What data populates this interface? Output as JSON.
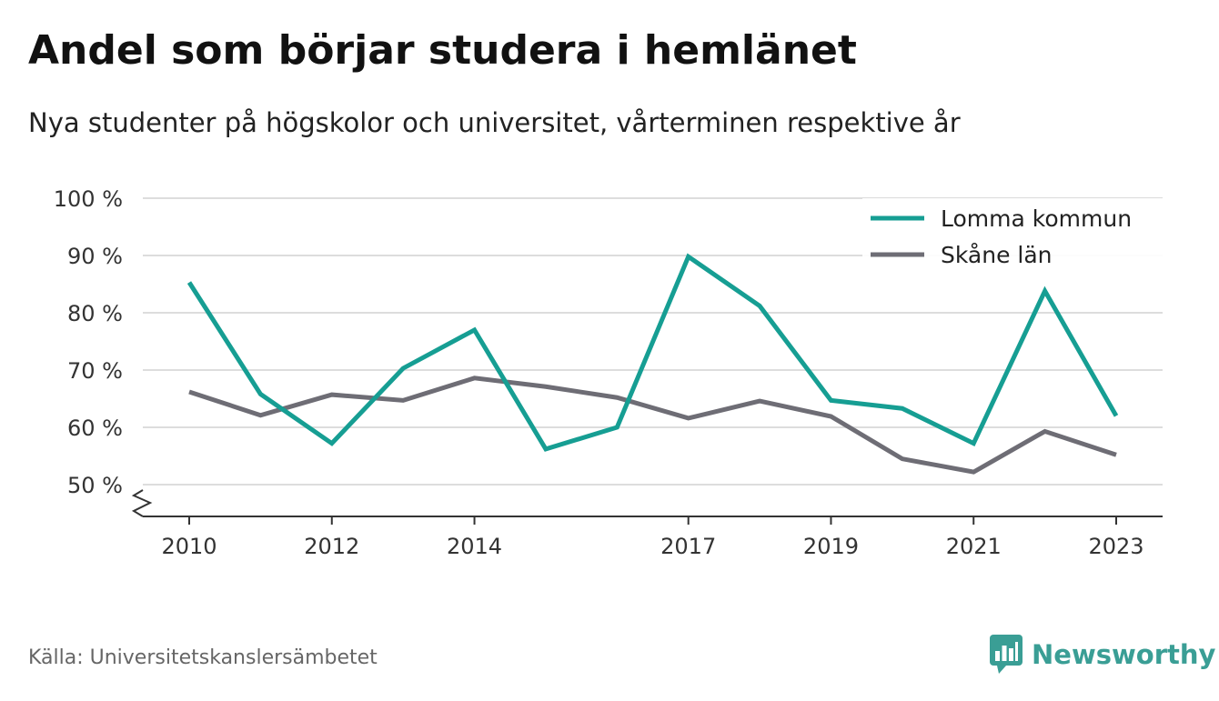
{
  "header": {
    "title": "Andel som börjar studera i hemlänet",
    "subtitle": "Nya studenter på högskolor och universitet, vårterminen respektive år"
  },
  "footer": {
    "source": "Källa: Universitetskanslersämbetet",
    "brand": "Newsworthy"
  },
  "colors": {
    "lomma": "#169e93",
    "skane": "#6e6d75",
    "grid": "#dddddd",
    "axis": "#333333",
    "brand": "#3a9e95"
  },
  "icons": {
    "brand_logo": "bar-chart-speech-bubble-icon",
    "axis_break": "zigzag-axis-break-icon"
  },
  "chart_data": {
    "type": "line",
    "x": [
      2010,
      2011,
      2012,
      2013,
      2014,
      2015,
      2016,
      2017,
      2018,
      2019,
      2020,
      2021,
      2022,
      2023
    ],
    "x_tick_labels": [
      "2010",
      "2012",
      "2014",
      "2017",
      "2019",
      "2021",
      "2023"
    ],
    "x_tick_values": [
      2010,
      2012,
      2014,
      2017,
      2019,
      2021,
      2023
    ],
    "y_tick_values": [
      50,
      60,
      70,
      80,
      90,
      100
    ],
    "y_tick_labels": [
      "50 %",
      "60 %",
      "70 %",
      "80 %",
      "90 %",
      "100 %"
    ],
    "ylim": [
      45,
      100
    ],
    "y_axis_break": true,
    "grid": true,
    "legend_position": "top-right",
    "series": [
      {
        "name": "Lomma kommun",
        "values": [
          85.3,
          65.8,
          57.2,
          70.3,
          77.0,
          56.2,
          60.0,
          89.8,
          81.2,
          64.7,
          63.3,
          57.2,
          83.8,
          62.0
        ]
      },
      {
        "name": "Skåne län",
        "values": [
          66.2,
          62.1,
          65.7,
          64.7,
          68.6,
          67.1,
          65.2,
          61.6,
          64.6,
          61.9,
          54.5,
          52.2,
          59.3,
          55.2
        ]
      }
    ]
  }
}
